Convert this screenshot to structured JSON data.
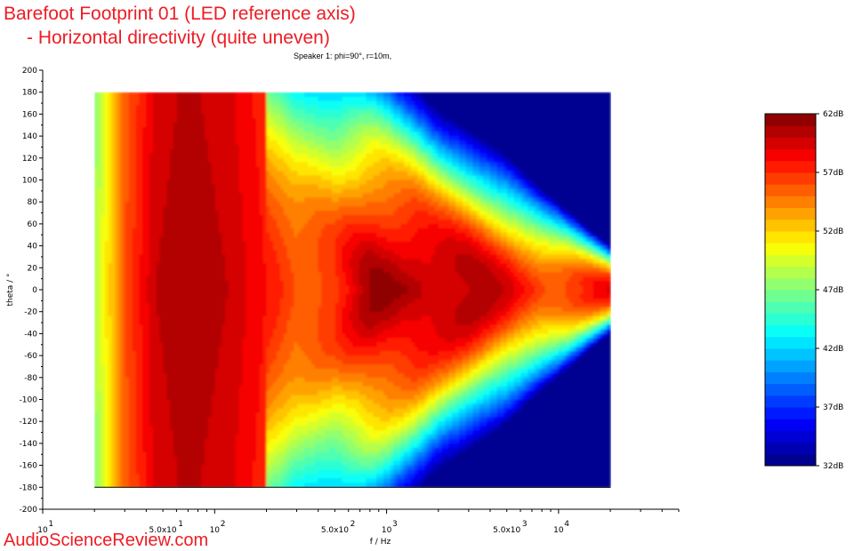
{
  "title_line_1": "Barefoot Footprint 01 (LED reference axis)",
  "title_line_2": "- Horizontal directivity (quite uneven)",
  "watermark": "AudioScienceReview.com",
  "chart_data": {
    "type": "heatmap",
    "subtitle": "Speaker 1: phi=90°, r=10m,",
    "xlabel": "f / Hz",
    "ylabel": "theta / °",
    "x_scale": "log",
    "xlim": [
      10,
      50000
    ],
    "ylim": [
      -200,
      200
    ],
    "data_x_range": [
      20,
      20000
    ],
    "data_y_range": [
      -180,
      180
    ],
    "x_major_ticks": [
      {
        "value": 10,
        "label": "10"
      },
      {
        "value": 50,
        "label": "5.0x10"
      },
      {
        "value": 100,
        "label": "10"
      },
      {
        "value": 500,
        "label": "5.0x10"
      },
      {
        "value": 1000,
        "label": "10"
      },
      {
        "value": 5000,
        "label": "5.0x10"
      },
      {
        "value": 10000,
        "label": "10"
      }
    ],
    "x_tick_exponents": [
      {
        "value": 10,
        "label": "1"
      },
      {
        "value": 50,
        "label": "1"
      },
      {
        "value": 100,
        "label": "2"
      },
      {
        "value": 500,
        "label": "2"
      },
      {
        "value": 1000,
        "label": "3"
      },
      {
        "value": 5000,
        "label": "3"
      },
      {
        "value": 10000,
        "label": "4"
      }
    ],
    "y_ticks": [
      "200",
      "180",
      "160",
      "140",
      "120",
      "100",
      "80",
      "60",
      "40",
      "20",
      "0",
      "-20",
      "-40",
      "-60",
      "-80",
      "-100",
      "-120",
      "-140",
      "-160",
      "-180",
      "-200"
    ],
    "y_tick_values": [
      200,
      180,
      160,
      140,
      120,
      100,
      80,
      60,
      40,
      20,
      0,
      -20,
      -40,
      -60,
      -80,
      -100,
      -120,
      -140,
      -160,
      -180,
      -200
    ],
    "colorbar": {
      "min": 32,
      "max": 62,
      "unit": "dB",
      "levels": 30,
      "labels": [
        "62dB",
        "57dB",
        "52dB",
        "47dB",
        "42dB",
        "37dB",
        "32dB"
      ],
      "label_values": [
        62,
        57,
        52,
        47,
        42,
        37,
        32
      ]
    },
    "on_axis_level_profile": [
      {
        "f": 20,
        "db": 48
      },
      {
        "f": 30,
        "db": 56
      },
      {
        "f": 45,
        "db": 60
      },
      {
        "f": 70,
        "db": 61
      },
      {
        "f": 120,
        "db": 60
      },
      {
        "f": 200,
        "db": 58
      },
      {
        "f": 300,
        "db": 56
      },
      {
        "f": 500,
        "db": 57
      },
      {
        "f": 800,
        "db": 60
      },
      {
        "f": 1500,
        "db": 61
      },
      {
        "f": 3000,
        "db": 60
      },
      {
        "f": 8000,
        "db": 57
      },
      {
        "f": 20000,
        "db": 58
      }
    ],
    "beamwidth_profile_deg": [
      {
        "f": 20,
        "w": 180
      },
      {
        "f": 200,
        "w": 180
      },
      {
        "f": 300,
        "w": 170
      },
      {
        "f": 500,
        "w": 150
      },
      {
        "f": 1000,
        "w": 130
      },
      {
        "f": 2000,
        "w": 100
      },
      {
        "f": 5000,
        "w": 75
      },
      {
        "f": 10000,
        "w": 50
      },
      {
        "f": 20000,
        "w": 25
      }
    ]
  },
  "colors": {
    "title": "#ee1c24",
    "watermark": "#ee1c24"
  }
}
